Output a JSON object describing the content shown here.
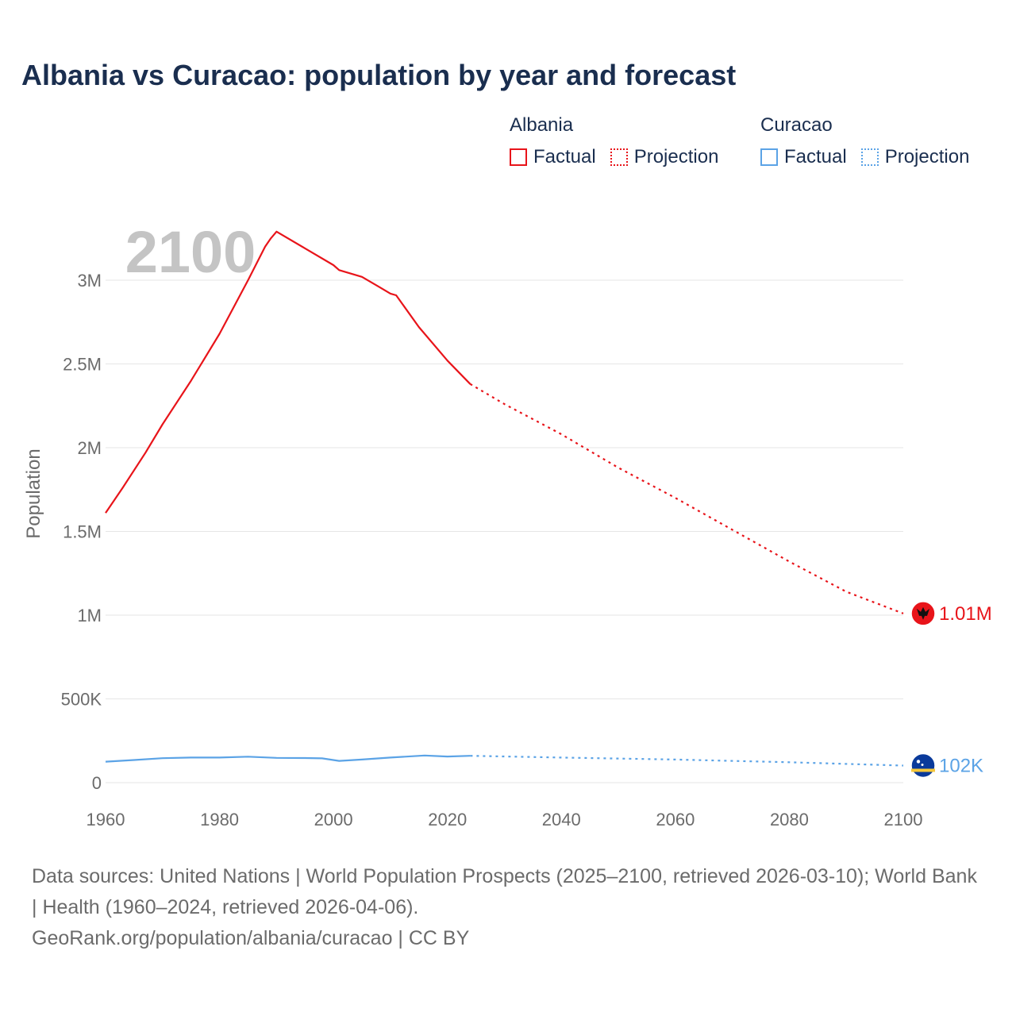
{
  "title": "Albania vs Curacao: population by year and forecast",
  "legend": {
    "groups": [
      {
        "name": "Albania",
        "factual": "Factual",
        "projection": "Projection",
        "color": "#e8141a"
      },
      {
        "name": "Curacao",
        "factual": "Factual",
        "projection": "Projection",
        "color": "#5ba3e6"
      }
    ]
  },
  "footer": {
    "sources": "Data sources: United Nations | World Population Prospects (2025–2100, retrieved 2026-03-10); World Bank | Health (1960–2024, retrieved 2026-04-06).",
    "credit": "GeoRank.org/population/albania/curacao | CC BY"
  },
  "chart_data": {
    "type": "line",
    "title": "Albania vs Curacao: population by year and forecast",
    "watermark_year": "2100",
    "xlabel": "",
    "ylabel": "Population",
    "xlim": [
      1960,
      2100
    ],
    "ylim": [
      0,
      3300000
    ],
    "x_ticks": [
      1960,
      1980,
      2000,
      2020,
      2040,
      2060,
      2080,
      2100
    ],
    "y_ticks": [
      {
        "value": 0,
        "label": "0"
      },
      {
        "value": 500000,
        "label": "500K"
      },
      {
        "value": 1000000,
        "label": "1M"
      },
      {
        "value": 1500000,
        "label": "1.5M"
      },
      {
        "value": 2000000,
        "label": "2M"
      },
      {
        "value": 2500000,
        "label": "2.5M"
      },
      {
        "value": 3000000,
        "label": "3M"
      }
    ],
    "grid": true,
    "series": [
      {
        "name": "Albania",
        "color": "#e8141a",
        "end_label": "1.01M",
        "factual": [
          [
            1960,
            1610000
          ],
          [
            1963,
            1760000
          ],
          [
            1967,
            1970000
          ],
          [
            1970,
            2140000
          ],
          [
            1975,
            2400000
          ],
          [
            1980,
            2680000
          ],
          [
            1985,
            3000000
          ],
          [
            1988,
            3200000
          ],
          [
            1989,
            3250000
          ],
          [
            1990,
            3290000
          ],
          [
            1995,
            3190000
          ],
          [
            2000,
            3090000
          ],
          [
            2001,
            3060000
          ],
          [
            2005,
            3020000
          ],
          [
            2008,
            2960000
          ],
          [
            2010,
            2920000
          ],
          [
            2011,
            2910000
          ],
          [
            2015,
            2720000
          ],
          [
            2020,
            2520000
          ],
          [
            2024,
            2380000
          ]
        ],
        "projection": [
          [
            2024,
            2380000
          ],
          [
            2030,
            2260000
          ],
          [
            2040,
            2080000
          ],
          [
            2050,
            1880000
          ],
          [
            2060,
            1700000
          ],
          [
            2070,
            1510000
          ],
          [
            2080,
            1320000
          ],
          [
            2090,
            1140000
          ],
          [
            2100,
            1010000
          ]
        ]
      },
      {
        "name": "Curacao",
        "color": "#5ba3e6",
        "end_label": "102K",
        "factual": [
          [
            1960,
            125000
          ],
          [
            1965,
            135000
          ],
          [
            1970,
            146000
          ],
          [
            1975,
            150000
          ],
          [
            1980,
            150000
          ],
          [
            1985,
            155000
          ],
          [
            1990,
            148000
          ],
          [
            1995,
            147000
          ],
          [
            1998,
            145000
          ],
          [
            2001,
            130000
          ],
          [
            2005,
            138000
          ],
          [
            2010,
            150000
          ],
          [
            2016,
            162000
          ],
          [
            2020,
            156000
          ],
          [
            2024,
            160000
          ]
        ],
        "projection": [
          [
            2024,
            160000
          ],
          [
            2040,
            150000
          ],
          [
            2060,
            138000
          ],
          [
            2080,
            122000
          ],
          [
            2100,
            102000
          ]
        ]
      }
    ]
  }
}
